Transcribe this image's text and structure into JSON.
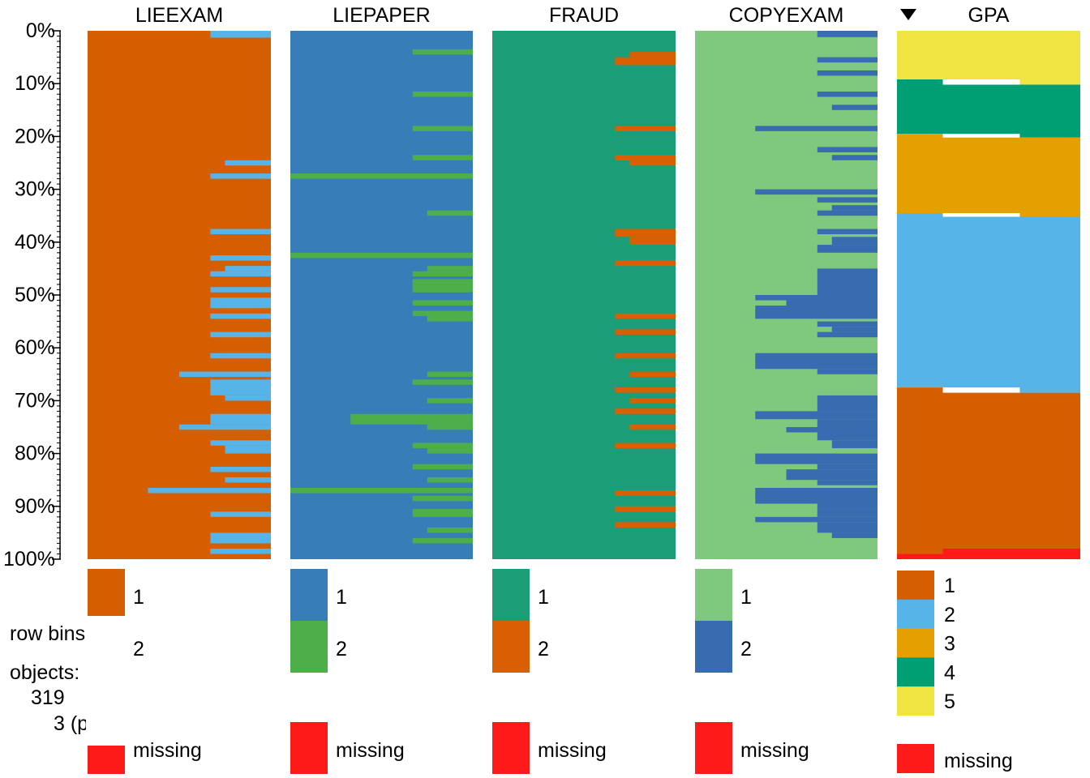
{
  "info": {
    "row_bins_label": "row bins",
    "objects_label": "objects:",
    "objects_count": "319",
    "per_bin_label": "3 (p"
  },
  "chart_data": {
    "type": "tableplot",
    "title": "",
    "sort_variable": "GPA",
    "sort_indicator": "descending-triangle",
    "y_ticks": [
      "0%",
      "10%",
      "20%",
      "30%",
      "40%",
      "50%",
      "60%",
      "70%",
      "80%",
      "90%",
      "100%"
    ],
    "bins": 100,
    "missing_label": "missing",
    "missing_color": "#ff1a1a",
    "variables": [
      {
        "name": "LIEEXAM",
        "categories": [
          {
            "label": "1",
            "color": "#d55e00"
          },
          {
            "label": "2",
            "color": "#56b4e9"
          }
        ],
        "category2_segments_pct": [
          {
            "from": 0,
            "to": 1.3,
            "fraction": 0.33
          },
          {
            "from": 24.5,
            "to": 25.5,
            "fraction": 0.25
          },
          {
            "from": 27,
            "to": 28,
            "fraction": 0.33
          },
          {
            "from": 37.5,
            "to": 38.5,
            "fraction": 0.33
          },
          {
            "from": 42.5,
            "to": 43.5,
            "fraction": 0.33
          },
          {
            "from": 44.5,
            "to": 45.5,
            "fraction": 0.25
          },
          {
            "from": 45.5,
            "to": 46.5,
            "fraction": 0.33
          },
          {
            "from": 48.5,
            "to": 49.5,
            "fraction": 0.33
          },
          {
            "from": 50.5,
            "to": 52.5,
            "fraction": 0.33
          },
          {
            "from": 53.5,
            "to": 54.5,
            "fraction": 0.33
          },
          {
            "from": 57,
            "to": 58,
            "fraction": 0.33
          },
          {
            "from": 61,
            "to": 62,
            "fraction": 0.33
          },
          {
            "from": 64.5,
            "to": 65.5,
            "fraction": 0.5
          },
          {
            "from": 66,
            "to": 69,
            "fraction": 0.33
          },
          {
            "from": 69,
            "to": 70,
            "fraction": 0.25
          },
          {
            "from": 72.5,
            "to": 74.5,
            "fraction": 0.33
          },
          {
            "from": 74.5,
            "to": 75.5,
            "fraction": 0.5
          },
          {
            "from": 77.5,
            "to": 78.5,
            "fraction": 0.33
          },
          {
            "from": 78.5,
            "to": 80,
            "fraction": 0.25
          },
          {
            "from": 82.5,
            "to": 83.5,
            "fraction": 0.33
          },
          {
            "from": 84.5,
            "to": 85.5,
            "fraction": 0.25
          },
          {
            "from": 86.5,
            "to": 87.5,
            "fraction": 0.67
          },
          {
            "from": 91,
            "to": 92,
            "fraction": 0.33
          },
          {
            "from": 95,
            "to": 97,
            "fraction": 0.33
          },
          {
            "from": 98,
            "to": 99,
            "fraction": 0.33
          }
        ]
      },
      {
        "name": "LIEPAPER",
        "categories": [
          {
            "label": "1",
            "color": "#377eb8"
          },
          {
            "label": "2",
            "color": "#4daf4a"
          }
        ],
        "category2_segments_pct": [
          {
            "from": 3.5,
            "to": 4.5,
            "fraction": 0.33
          },
          {
            "from": 11.5,
            "to": 12.5,
            "fraction": 0.33
          },
          {
            "from": 18,
            "to": 19,
            "fraction": 0.33
          },
          {
            "from": 23.5,
            "to": 24.5,
            "fraction": 0.33
          },
          {
            "from": 27,
            "to": 28,
            "fraction": 1.0
          },
          {
            "from": 34,
            "to": 35,
            "fraction": 0.25
          },
          {
            "from": 42,
            "to": 43,
            "fraction": 1.0
          },
          {
            "from": 44.5,
            "to": 45.5,
            "fraction": 0.25
          },
          {
            "from": 45.5,
            "to": 46.5,
            "fraction": 0.33
          },
          {
            "from": 47,
            "to": 49.5,
            "fraction": 0.33
          },
          {
            "from": 51,
            "to": 52,
            "fraction": 0.33
          },
          {
            "from": 53,
            "to": 54,
            "fraction": 0.33
          },
          {
            "from": 54,
            "to": 55,
            "fraction": 0.25
          },
          {
            "from": 64.5,
            "to": 65.5,
            "fraction": 0.25
          },
          {
            "from": 66,
            "to": 67,
            "fraction": 0.33
          },
          {
            "from": 69.5,
            "to": 70.5,
            "fraction": 0.25
          },
          {
            "from": 72.5,
            "to": 74.5,
            "fraction": 0.67
          },
          {
            "from": 74.5,
            "to": 75.5,
            "fraction": 0.25
          },
          {
            "from": 78,
            "to": 79,
            "fraction": 0.33
          },
          {
            "from": 79,
            "to": 80,
            "fraction": 0.25
          },
          {
            "from": 82,
            "to": 83,
            "fraction": 0.33
          },
          {
            "from": 84.5,
            "to": 85.5,
            "fraction": 0.25
          },
          {
            "from": 86.5,
            "to": 87.5,
            "fraction": 1.0
          },
          {
            "from": 88,
            "to": 89,
            "fraction": 0.33
          },
          {
            "from": 90.5,
            "to": 92,
            "fraction": 0.33
          },
          {
            "from": 94,
            "to": 95,
            "fraction": 0.25
          },
          {
            "from": 96,
            "to": 97,
            "fraction": 0.33
          }
        ]
      },
      {
        "name": "FRAUD",
        "categories": [
          {
            "label": "1",
            "color": "#1b9e77"
          },
          {
            "label": "2",
            "color": "#d95f02"
          }
        ],
        "category2_segments_pct": [
          {
            "from": 4,
            "to": 5,
            "fraction": 0.25
          },
          {
            "from": 5,
            "to": 6.5,
            "fraction": 0.33
          },
          {
            "from": 18,
            "to": 19,
            "fraction": 0.33
          },
          {
            "from": 23.5,
            "to": 24.5,
            "fraction": 0.33
          },
          {
            "from": 24.5,
            "to": 25.5,
            "fraction": 0.25
          },
          {
            "from": 37.5,
            "to": 39,
            "fraction": 0.33
          },
          {
            "from": 39,
            "to": 40.5,
            "fraction": 0.25
          },
          {
            "from": 43.5,
            "to": 44.5,
            "fraction": 0.33
          },
          {
            "from": 53.5,
            "to": 54.5,
            "fraction": 0.33
          },
          {
            "from": 56.5,
            "to": 57.5,
            "fraction": 0.33
          },
          {
            "from": 61,
            "to": 62,
            "fraction": 0.33
          },
          {
            "from": 64.5,
            "to": 65.5,
            "fraction": 0.25
          },
          {
            "from": 67.5,
            "to": 68.5,
            "fraction": 0.33
          },
          {
            "from": 69.5,
            "to": 70.5,
            "fraction": 0.25
          },
          {
            "from": 71.5,
            "to": 72.5,
            "fraction": 0.33
          },
          {
            "from": 74.5,
            "to": 75.5,
            "fraction": 0.25
          },
          {
            "from": 78,
            "to": 79,
            "fraction": 0.33
          },
          {
            "from": 87,
            "to": 88,
            "fraction": 0.33
          },
          {
            "from": 90,
            "to": 91,
            "fraction": 0.33
          },
          {
            "from": 93,
            "to": 94,
            "fraction": 0.33
          }
        ]
      },
      {
        "name": "COPYEXAM",
        "categories": [
          {
            "label": "1",
            "color": "#7fc97f"
          },
          {
            "label": "2",
            "color": "#386cb0"
          }
        ],
        "category2_segments_pct": [
          {
            "from": 0,
            "to": 1.2,
            "fraction": 0.33
          },
          {
            "from": 5,
            "to": 6,
            "fraction": 0.33
          },
          {
            "from": 7.5,
            "to": 8.5,
            "fraction": 0.33
          },
          {
            "from": 11.5,
            "to": 12.5,
            "fraction": 0.33
          },
          {
            "from": 14,
            "to": 15,
            "fraction": 0.25
          },
          {
            "from": 18,
            "to": 19,
            "fraction": 0.67
          },
          {
            "from": 22,
            "to": 23,
            "fraction": 0.33
          },
          {
            "from": 23.5,
            "to": 24.5,
            "fraction": 0.25
          },
          {
            "from": 30,
            "to": 31,
            "fraction": 0.67
          },
          {
            "from": 31.5,
            "to": 32.5,
            "fraction": 0.33
          },
          {
            "from": 33,
            "to": 34,
            "fraction": 0.25
          },
          {
            "from": 34,
            "to": 35,
            "fraction": 0.33
          },
          {
            "from": 37.5,
            "to": 38.5,
            "fraction": 0.33
          },
          {
            "from": 39,
            "to": 40.5,
            "fraction": 0.25
          },
          {
            "from": 40.5,
            "to": 42,
            "fraction": 0.33
          },
          {
            "from": 45,
            "to": 50,
            "fraction": 0.33
          },
          {
            "from": 50,
            "to": 51,
            "fraction": 0.67
          },
          {
            "from": 51,
            "to": 52,
            "fraction": 0.5
          },
          {
            "from": 52,
            "to": 54.5,
            "fraction": 0.67
          },
          {
            "from": 55,
            "to": 56,
            "fraction": 0.33
          },
          {
            "from": 56,
            "to": 57,
            "fraction": 0.25
          },
          {
            "from": 57,
            "to": 58,
            "fraction": 0.33
          },
          {
            "from": 61,
            "to": 64,
            "fraction": 0.67
          },
          {
            "from": 64,
            "to": 65,
            "fraction": 0.33
          },
          {
            "from": 69,
            "to": 72,
            "fraction": 0.33
          },
          {
            "from": 72,
            "to": 73.5,
            "fraction": 0.67
          },
          {
            "from": 73.5,
            "to": 75,
            "fraction": 0.33
          },
          {
            "from": 75,
            "to": 76,
            "fraction": 0.5
          },
          {
            "from": 76,
            "to": 77.5,
            "fraction": 0.33
          },
          {
            "from": 77.5,
            "to": 79,
            "fraction": 0.25
          },
          {
            "from": 80,
            "to": 82,
            "fraction": 0.67
          },
          {
            "from": 82,
            "to": 83,
            "fraction": 0.33
          },
          {
            "from": 83,
            "to": 85,
            "fraction": 0.5
          },
          {
            "from": 85,
            "to": 86,
            "fraction": 0.33
          },
          {
            "from": 86.5,
            "to": 89.5,
            "fraction": 0.67
          },
          {
            "from": 89.5,
            "to": 90.5,
            "fraction": 0.33
          },
          {
            "from": 90.5,
            "to": 92,
            "fraction": 0.33
          },
          {
            "from": 92,
            "to": 93,
            "fraction": 0.67
          },
          {
            "from": 93,
            "to": 95,
            "fraction": 0.33
          },
          {
            "from": 95,
            "to": 96,
            "fraction": 0.25
          }
        ]
      },
      {
        "name": "GPA",
        "categories": [
          {
            "label": "1",
            "color": "#d55e00"
          },
          {
            "label": "2",
            "color": "#56b4e9"
          },
          {
            "label": "3",
            "color": "#e69f00"
          },
          {
            "label": "4",
            "color": "#009e73"
          },
          {
            "label": "5",
            "color": "#f0e442"
          }
        ],
        "stack_from_top": [
          "5",
          "4",
          "3",
          "2",
          "1",
          "missing"
        ],
        "boundaries_pct": [
          {
            "from": 0,
            "to": 9.5,
            "bands": [
              9.2,
              10.2,
              20.2,
              35.2,
              67.5,
              98.9
            ]
          },
          {
            "from": 9.5,
            "to": 19.5,
            "bands": [
              9.2,
              20.2,
              35.2,
              67.5,
              98.9
            ]
          }
        ],
        "bands": [
          {
            "category": "5",
            "top": 0,
            "bottom": [
              9.2,
              10.2
            ]
          },
          {
            "category": "4",
            "top": [
              9.2,
              10.2
            ],
            "bottom": [
              19.5,
              20.2
            ]
          },
          {
            "category": "3",
            "top": [
              19.5,
              20.2
            ],
            "bottom": [
              34.5,
              35.2
            ]
          },
          {
            "category": "2",
            "top": [
              34.5,
              35.2
            ],
            "bottom": [
              67.5,
              68.5
            ]
          },
          {
            "category": "1",
            "top": [
              67.5,
              68.5
            ],
            "bottom": [
              99.0,
              98.0
            ]
          },
          {
            "category": "missing",
            "top": [
              99.0,
              98.0
            ],
            "bottom": 100
          }
        ]
      }
    ]
  }
}
